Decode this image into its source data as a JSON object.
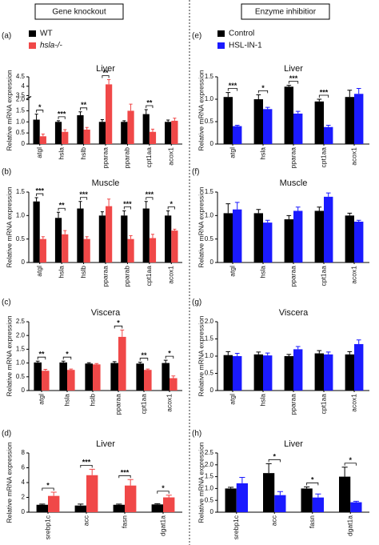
{
  "headers": [
    "Gene knockout",
    "Enzyme inhibitior"
  ],
  "chart_data": [
    {
      "type": "bar",
      "panel": "(a)",
      "title": "Liver",
      "ylabel": "Relative mRNA expression",
      "legend": true,
      "categories": [
        "atgl",
        "hsla",
        "hslb",
        "pparaa",
        "pparab",
        "cpt1aa",
        "acox1"
      ],
      "series": [
        {
          "name": "WT",
          "color": "#000000",
          "values": [
            1.1,
            1.0,
            1.3,
            1.0,
            1.0,
            1.35,
            1.0
          ],
          "errors": [
            0.25,
            0.05,
            0.15,
            0.1,
            0.05,
            0.2,
            0.08
          ]
        },
        {
          "name": "hsla-/-",
          "italic": true,
          "color": "#f04848",
          "values": [
            0.35,
            0.55,
            0.65,
            4.1,
            1.5,
            0.55,
            1.05
          ],
          "errors": [
            0.1,
            0.1,
            0.1,
            0.25,
            0.3,
            0.12,
            0.12
          ]
        }
      ],
      "significance": [
        "*",
        "***",
        "**",
        "**",
        null,
        "**",
        null
      ],
      "ylim": [
        0,
        4.5
      ],
      "ybreak": [
        2,
        3.5
      ],
      "yticks": [
        0,
        0.5,
        {
          "value": 1,
          "label": "1.0"
        },
        1.5,
        {
          "value": 2,
          "label": "2.0"
        },
        3.5,
        4,
        4.5
      ]
    },
    {
      "type": "bar",
      "panel": "(b)",
      "title": "Muscle",
      "ylabel": "Relative mRNA expression",
      "legend": false,
      "categories": [
        "atgl",
        "hsla",
        "hslb",
        "pparaa",
        "pparab",
        "cpt1aa",
        "acox1"
      ],
      "series": [
        {
          "color": "#000000",
          "values": [
            1.3,
            0.95,
            1.15,
            1.0,
            1.0,
            1.15,
            1.0
          ],
          "errors": [
            0.08,
            0.12,
            0.15,
            0.08,
            0.1,
            0.15,
            0.1
          ]
        },
        {
          "color": "#f04848",
          "values": [
            0.5,
            0.6,
            0.5,
            1.2,
            0.5,
            0.52,
            0.68
          ],
          "errors": [
            0.05,
            0.08,
            0.05,
            0.15,
            0.07,
            0.08,
            0.03
          ]
        }
      ],
      "significance": [
        "***",
        "**",
        "***",
        null,
        "***",
        "***",
        "*"
      ],
      "ylim": [
        0,
        1.5
      ],
      "yticks": [
        0,
        0.5,
        {
          "value": 1,
          "label": "1.0"
        },
        1.5
      ]
    },
    {
      "type": "bar",
      "panel": "(c)",
      "title": "Viscera",
      "ylabel": "Relative mRNA expression",
      "legend": false,
      "categories": [
        "atgl",
        "hsla",
        "hslb",
        "pparaa",
        "cpt1aa",
        "acox1"
      ],
      "series": [
        {
          "color": "#000000",
          "values": [
            1.02,
            1.02,
            0.98,
            1.0,
            0.98,
            1.0
          ],
          "errors": [
            0.05,
            0.05,
            0.03,
            0.05,
            0.05,
            0.1
          ]
        },
        {
          "color": "#f04848",
          "values": [
            0.72,
            0.75,
            0.95,
            1.95,
            0.75,
            0.45
          ],
          "errors": [
            0.05,
            0.03,
            0.03,
            0.25,
            0.03,
            0.08
          ]
        }
      ],
      "significance": [
        "**",
        "*",
        null,
        "*",
        "**",
        "*"
      ],
      "ylim": [
        0,
        2.5
      ],
      "yticks": [
        0,
        0.5,
        {
          "value": 1,
          "label": "1.0"
        },
        1.5,
        {
          "value": 2,
          "label": "2.0"
        },
        2.5
      ]
    },
    {
      "type": "bar",
      "panel": "(d)",
      "title": "Liver",
      "ylabel": "Relative mRNA expression",
      "legend": false,
      "categories": [
        "srebp1c",
        "acc",
        "fasn",
        "dgat1a"
      ],
      "series": [
        {
          "color": "#000000",
          "values": [
            1.0,
            0.9,
            1.0,
            1.05
          ],
          "errors": [
            0.1,
            0.2,
            0.1,
            0.1
          ]
        },
        {
          "color": "#f04848",
          "values": [
            2.2,
            5.0,
            3.6,
            2.0
          ],
          "errors": [
            0.5,
            0.8,
            0.8,
            0.3
          ]
        }
      ],
      "significance": [
        "*",
        "***",
        "***",
        "*"
      ],
      "ylim": [
        0,
        8
      ],
      "yticks": [
        0,
        2,
        4,
        6,
        8
      ]
    },
    {
      "type": "bar",
      "panel": "(e)",
      "title": "Liver",
      "ylabel": "Relative mRNA expression",
      "legend": true,
      "categories": [
        "atgl",
        "hsla",
        "pparaa",
        "cpt1aa",
        "acox1"
      ],
      "series": [
        {
          "name": "Control",
          "color": "#000000",
          "values": [
            1.05,
            1.0,
            1.28,
            0.95,
            1.05
          ],
          "errors": [
            0.1,
            0.1,
            0.03,
            0.05,
            0.15
          ]
        },
        {
          "name": "HSL-IN-1",
          "color": "#1a1aff",
          "values": [
            0.4,
            0.78,
            0.68,
            0.38,
            1.12
          ],
          "errors": [
            0.02,
            0.04,
            0.05,
            0.04,
            0.12
          ]
        }
      ],
      "significance": [
        "***",
        "*",
        "***",
        "***",
        null
      ],
      "ylim": [
        0,
        1.5
      ],
      "yticks": [
        0,
        0.5,
        {
          "value": 1,
          "label": "1.0"
        },
        1.5
      ]
    },
    {
      "type": "bar",
      "panel": "(f)",
      "title": "Muscle",
      "ylabel": "Relative mRNA expression",
      "legend": false,
      "categories": [
        "atgl",
        "hsla",
        "pparaa",
        "cpt1aa",
        "acox1"
      ],
      "series": [
        {
          "color": "#000000",
          "values": [
            1.05,
            1.05,
            0.92,
            1.1,
            1.0
          ],
          "errors": [
            0.2,
            0.08,
            0.08,
            0.08,
            0.05
          ]
        },
        {
          "color": "#1a1aff",
          "values": [
            1.13,
            0.85,
            1.1,
            1.4,
            0.87
          ],
          "errors": [
            0.15,
            0.05,
            0.08,
            0.08,
            0.03
          ]
        }
      ],
      "ylim": [
        0,
        1.5
      ],
      "yticks": [
        0,
        0.5,
        {
          "value": 1,
          "label": "1.0"
        },
        1.5
      ]
    },
    {
      "type": "bar",
      "panel": "(g)",
      "title": "Viscera",
      "ylabel": "Relative mRNA expression",
      "legend": false,
      "categories": [
        "atgl",
        "hsla",
        "pparaa",
        "cpt1aa",
        "acox1"
      ],
      "series": [
        {
          "color": "#000000",
          "values": [
            1.03,
            1.05,
            1.0,
            1.08,
            1.05
          ],
          "errors": [
            0.1,
            0.07,
            0.05,
            0.08,
            0.08
          ]
        },
        {
          "color": "#1a1aff",
          "values": [
            1.0,
            1.02,
            1.2,
            1.05,
            1.35
          ],
          "errors": [
            0.08,
            0.07,
            0.08,
            0.07,
            0.12
          ]
        }
      ],
      "ylim": [
        0,
        2
      ],
      "yticks": [
        0,
        0.5,
        {
          "value": 1,
          "label": "1.0"
        },
        1.5,
        {
          "value": 2,
          "label": "2.0"
        }
      ]
    },
    {
      "type": "bar",
      "panel": "(h)",
      "title": "Liver",
      "ylabel": "Relative mRNA expression",
      "legend": false,
      "categories": [
        "srebp1c",
        "acc",
        "fasn",
        "dgat1a"
      ],
      "series": [
        {
          "color": "#000000",
          "values": [
            1.0,
            1.65,
            1.0,
            1.5
          ],
          "errors": [
            0.05,
            0.4,
            0.07,
            0.4
          ]
        },
        {
          "color": "#1a1aff",
          "values": [
            1.22,
            0.72,
            0.62,
            0.42
          ],
          "errors": [
            0.25,
            0.15,
            0.15,
            0.04
          ]
        }
      ],
      "significance": [
        null,
        "*",
        "*",
        "*"
      ],
      "ylim": [
        0,
        2.5
      ],
      "yticks": [
        0,
        0.5,
        {
          "value": 1,
          "label": "1.0"
        },
        1.5,
        {
          "value": 2,
          "label": "2.0"
        },
        2.5
      ]
    }
  ]
}
